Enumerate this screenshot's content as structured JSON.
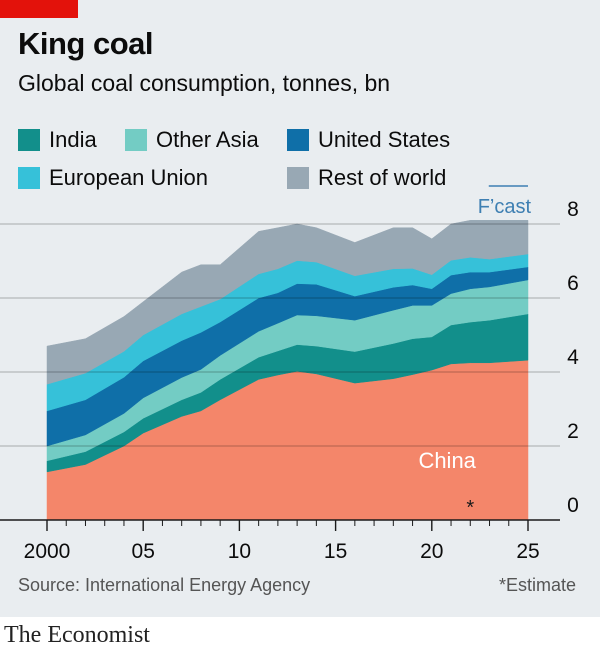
{
  "header": {
    "title": "King coal",
    "subtitle": "Global coal consumption, tonnes, bn"
  },
  "legend": [
    {
      "label": "India",
      "color": "#128f8b"
    },
    {
      "label": "Other Asia",
      "color": "#73ccc4"
    },
    {
      "label": "United States",
      "color": "#0f6fa8"
    },
    {
      "label": "European Union",
      "color": "#36c1d9"
    },
    {
      "label": "Rest of world",
      "color": "#98a8b4"
    }
  ],
  "footer": {
    "source": "Source: International Energy Agency",
    "footnote": "*Estimate",
    "brand": "The Economist"
  },
  "chart_data": {
    "type": "area",
    "stacked": true,
    "x": [
      2000,
      2002,
      2004,
      2005,
      2007,
      2008,
      2009,
      2011,
      2012,
      2013,
      2014,
      2016,
      2018,
      2019,
      2020,
      2021,
      2022,
      2023,
      2025
    ],
    "series": [
      {
        "name": "China",
        "color": "#f4866a",
        "values": [
          1.3,
          1.5,
          2.0,
          2.35,
          2.8,
          2.95,
          3.25,
          3.8,
          3.92,
          4.02,
          3.95,
          3.7,
          3.82,
          3.93,
          4.05,
          4.22,
          4.25,
          4.25,
          4.32
        ]
      },
      {
        "name": "India",
        "color": "#128f8b",
        "values": [
          0.3,
          0.35,
          0.38,
          0.4,
          0.45,
          0.5,
          0.55,
          0.6,
          0.65,
          0.72,
          0.75,
          0.85,
          0.95,
          0.97,
          0.9,
          1.05,
          1.1,
          1.15,
          1.25
        ]
      },
      {
        "name": "Other Asia",
        "color": "#73ccc4",
        "values": [
          0.4,
          0.45,
          0.5,
          0.55,
          0.6,
          0.62,
          0.65,
          0.7,
          0.75,
          0.8,
          0.82,
          0.85,
          0.9,
          0.9,
          0.85,
          0.85,
          0.9,
          0.9,
          0.92
        ]
      },
      {
        "name": "United States",
        "color": "#0f6fa8",
        "values": [
          0.95,
          0.95,
          0.98,
          1.0,
          1.0,
          1.0,
          0.9,
          0.9,
          0.82,
          0.85,
          0.85,
          0.65,
          0.62,
          0.55,
          0.45,
          0.5,
          0.45,
          0.4,
          0.35
        ]
      },
      {
        "name": "European Union",
        "color": "#36c1d9",
        "values": [
          0.72,
          0.72,
          0.7,
          0.7,
          0.72,
          0.7,
          0.62,
          0.65,
          0.65,
          0.62,
          0.6,
          0.55,
          0.5,
          0.45,
          0.38,
          0.4,
          0.4,
          0.35,
          0.35
        ]
      },
      {
        "name": "Rest of world",
        "color": "#98a8b4",
        "values": [
          1.03,
          0.93,
          0.94,
          0.9,
          1.13,
          1.13,
          0.93,
          1.15,
          1.11,
          0.99,
          0.93,
          0.9,
          1.11,
          1.1,
          0.97,
          0.98,
          1.0,
          1.05,
          0.91
        ]
      }
    ],
    "series_label": "China",
    "xlim": [
      2000,
      2025
    ],
    "ylim": [
      0,
      8
    ],
    "y_ticks": [
      0,
      2,
      4,
      6,
      8
    ],
    "x_ticks": [
      2000,
      2005,
      2010,
      2015,
      2020,
      2025
    ],
    "x_tick_labels": [
      "2000",
      "05",
      "10",
      "15",
      "20",
      "25"
    ],
    "forecast_range": [
      2024,
      2025
    ],
    "forecast_label": "F’cast",
    "estimate_marker": {
      "x": 2022,
      "label": "*"
    },
    "grid": true,
    "legend_position": "top"
  }
}
